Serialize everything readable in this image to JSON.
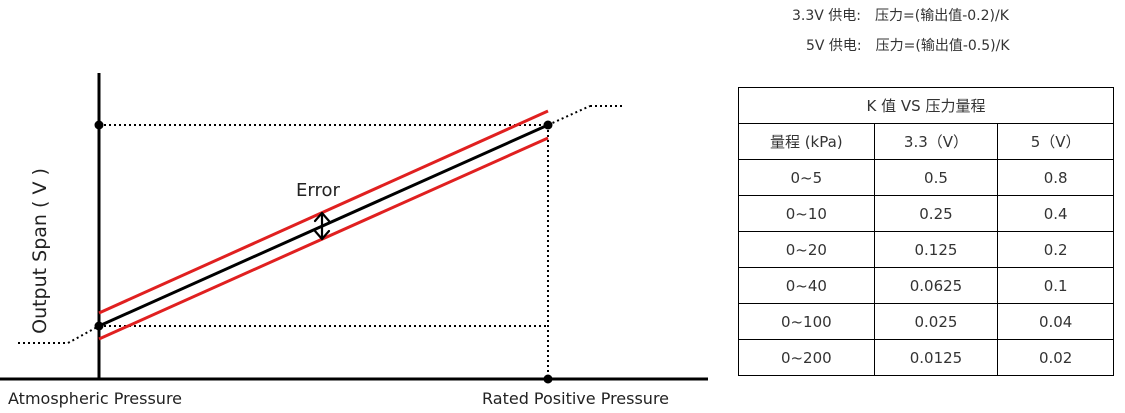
{
  "formulas": [
    {
      "supply": "3.3V 供电:",
      "expression": "压力=(输出值-0.2)/K"
    },
    {
      "supply": "5V  供电:",
      "expression": "压力=(输出值-0.5)/K"
    }
  ],
  "diagram": {
    "y_axis_label": "Output Span ( V )",
    "x_start_label": "Atmospheric Pressure",
    "x_end_label": "Rated Positive Pressure",
    "error_label": "Error",
    "colors": {
      "axis": "#000000",
      "transfer_line": "#000000",
      "error_band": "#e02020",
      "guides": "#000000"
    }
  },
  "table": {
    "title": "K 值  VS  压力量程",
    "headers": [
      "量程  (kPa)",
      "3.3（V）",
      "5（V）"
    ],
    "rows": [
      [
        "0~5",
        "0.5",
        "0.8"
      ],
      [
        "0~10",
        "0.25",
        "0.4"
      ],
      [
        "0~20",
        "0.125",
        "0.2"
      ],
      [
        "0~40",
        "0.0625",
        "0.1"
      ],
      [
        "0~100",
        "0.025",
        "0.04"
      ],
      [
        "0~200",
        "0.0125",
        "0.02"
      ]
    ]
  }
}
